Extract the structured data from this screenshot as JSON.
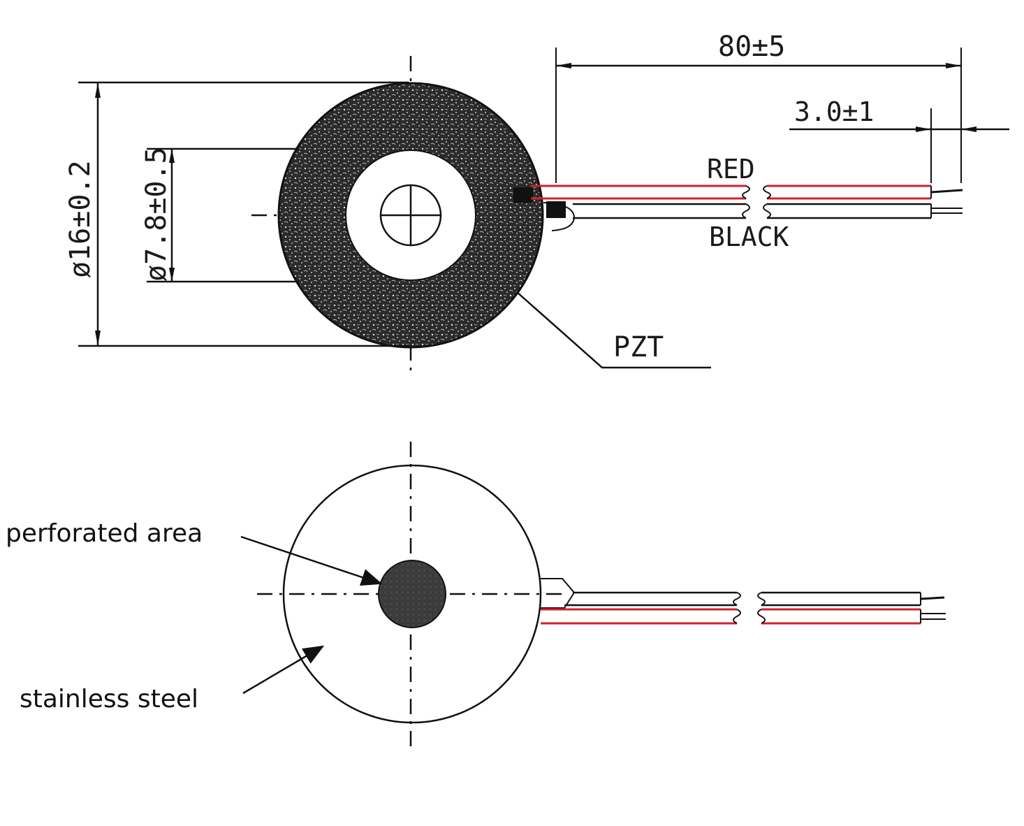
{
  "top_view": {
    "dim_outer_diameter": "ø16±0.2",
    "dim_inner_diameter": "ø7.8±0.5",
    "dim_lead_length": "80±5",
    "dim_strip_length": "3.0±1",
    "wire_red_label": "RED",
    "wire_black_label": "BLACK",
    "ceramic_label": "PZT"
  },
  "bottom_view": {
    "perforated_label": "perforated area",
    "steel_label": "stainless steel"
  },
  "colors": {
    "ink": "#111111",
    "red_wire": "#d3202c",
    "ceramic_fill": "#2a2a2a"
  }
}
